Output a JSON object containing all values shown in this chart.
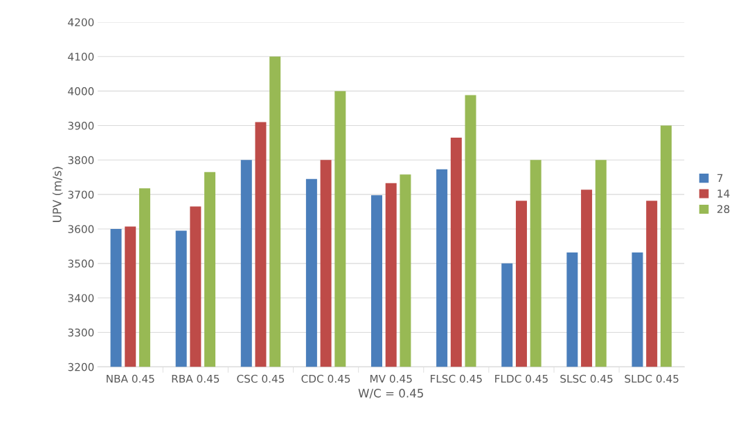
{
  "chart_data": {
    "type": "bar",
    "xlabel": "W/C = 0.45",
    "ylabel": "UPV (m/s)",
    "categories": [
      "NBA 0.45",
      "RBA 0.45",
      "CSC 0.45",
      "CDC 0.45",
      "MV 0.45",
      "FLSC 0.45",
      "FLDC 0.45",
      "SLSC 0.45",
      "SLDC 0.45"
    ],
    "series": [
      {
        "name": "7",
        "color": "#4a7ebb",
        "values": [
          3600,
          3595,
          3800,
          3745,
          3698,
          3773,
          3500,
          3532,
          3532
        ]
      },
      {
        "name": "14",
        "color": "#be4b48",
        "values": [
          3607,
          3665,
          3910,
          3800,
          3733,
          3865,
          3682,
          3714,
          3682
        ]
      },
      {
        "name": "28",
        "color": "#98b954",
        "values": [
          3718,
          3765,
          4100,
          4000,
          3758,
          3988,
          3800,
          3800,
          3900
        ]
      }
    ],
    "ylim": [
      3200,
      4200
    ],
    "yticks": [
      3200,
      3300,
      3400,
      3500,
      3600,
      3700,
      3800,
      3900,
      4000,
      4100,
      4200
    ],
    "grid": "y",
    "legend": "right"
  }
}
